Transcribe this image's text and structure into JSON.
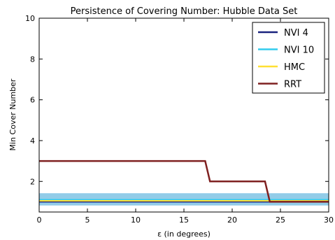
{
  "chart_data": {
    "type": "line",
    "title": "Persistence of Covering Number: Hubble Data Set",
    "xlabel": "ε (in degrees)",
    "ylabel": "Min Cover Number",
    "xlim": [
      0,
      30
    ],
    "ylim": [
      0.5,
      10
    ],
    "xticks": [
      0,
      5,
      10,
      15,
      20,
      25,
      30
    ],
    "yticks": [
      2,
      4,
      6,
      8,
      10
    ],
    "grid": false,
    "legend": "top-right",
    "band": {
      "y0": 0.82,
      "y1": 1.42,
      "color": "#7fc3e4"
    },
    "series": [
      {
        "name": "NVI 4",
        "color": "#1a237e",
        "x": [
          0,
          30
        ],
        "y": [
          1,
          1
        ]
      },
      {
        "name": "NVI 10",
        "color": "#33ccee",
        "x": [
          0,
          30
        ],
        "y": [
          1.1,
          1.1
        ]
      },
      {
        "name": "HMC",
        "color": "#ffe033",
        "x": [
          0,
          30
        ],
        "y": [
          1.05,
          1.05
        ]
      },
      {
        "name": "RRT",
        "color": "#7f2020",
        "x": [
          0,
          17.2,
          17.7,
          23.4,
          23.9,
          30
        ],
        "y": [
          3,
          3,
          2,
          2,
          1,
          1
        ]
      }
    ]
  }
}
